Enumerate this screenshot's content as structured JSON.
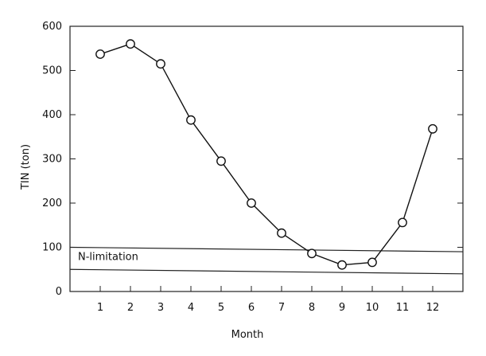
{
  "chart_data": {
    "type": "line",
    "title": "",
    "xlabel": "Month",
    "ylabel": "TIN (ton)",
    "x": [
      1,
      2,
      3,
      4,
      5,
      6,
      7,
      8,
      9,
      10,
      11,
      12
    ],
    "series": [
      {
        "values": [
          537,
          560,
          515,
          388,
          295,
          200,
          132,
          86,
          60,
          66,
          156,
          368
        ]
      }
    ],
    "xlim": [
      0,
      13
    ],
    "ylim": [
      0,
      600
    ],
    "yticks": [
      0,
      100,
      200,
      300,
      400,
      500,
      600
    ],
    "xticks": [
      1,
      2,
      3,
      4,
      5,
      6,
      7,
      8,
      9,
      10,
      11,
      12
    ],
    "reference_lines": [
      {
        "y_start": 100,
        "y_end": 90,
        "label": "N-limitation"
      },
      {
        "y_start": 50,
        "y_end": 40
      }
    ],
    "grid": false,
    "marker": "open-circle",
    "line_color": "#111111"
  }
}
